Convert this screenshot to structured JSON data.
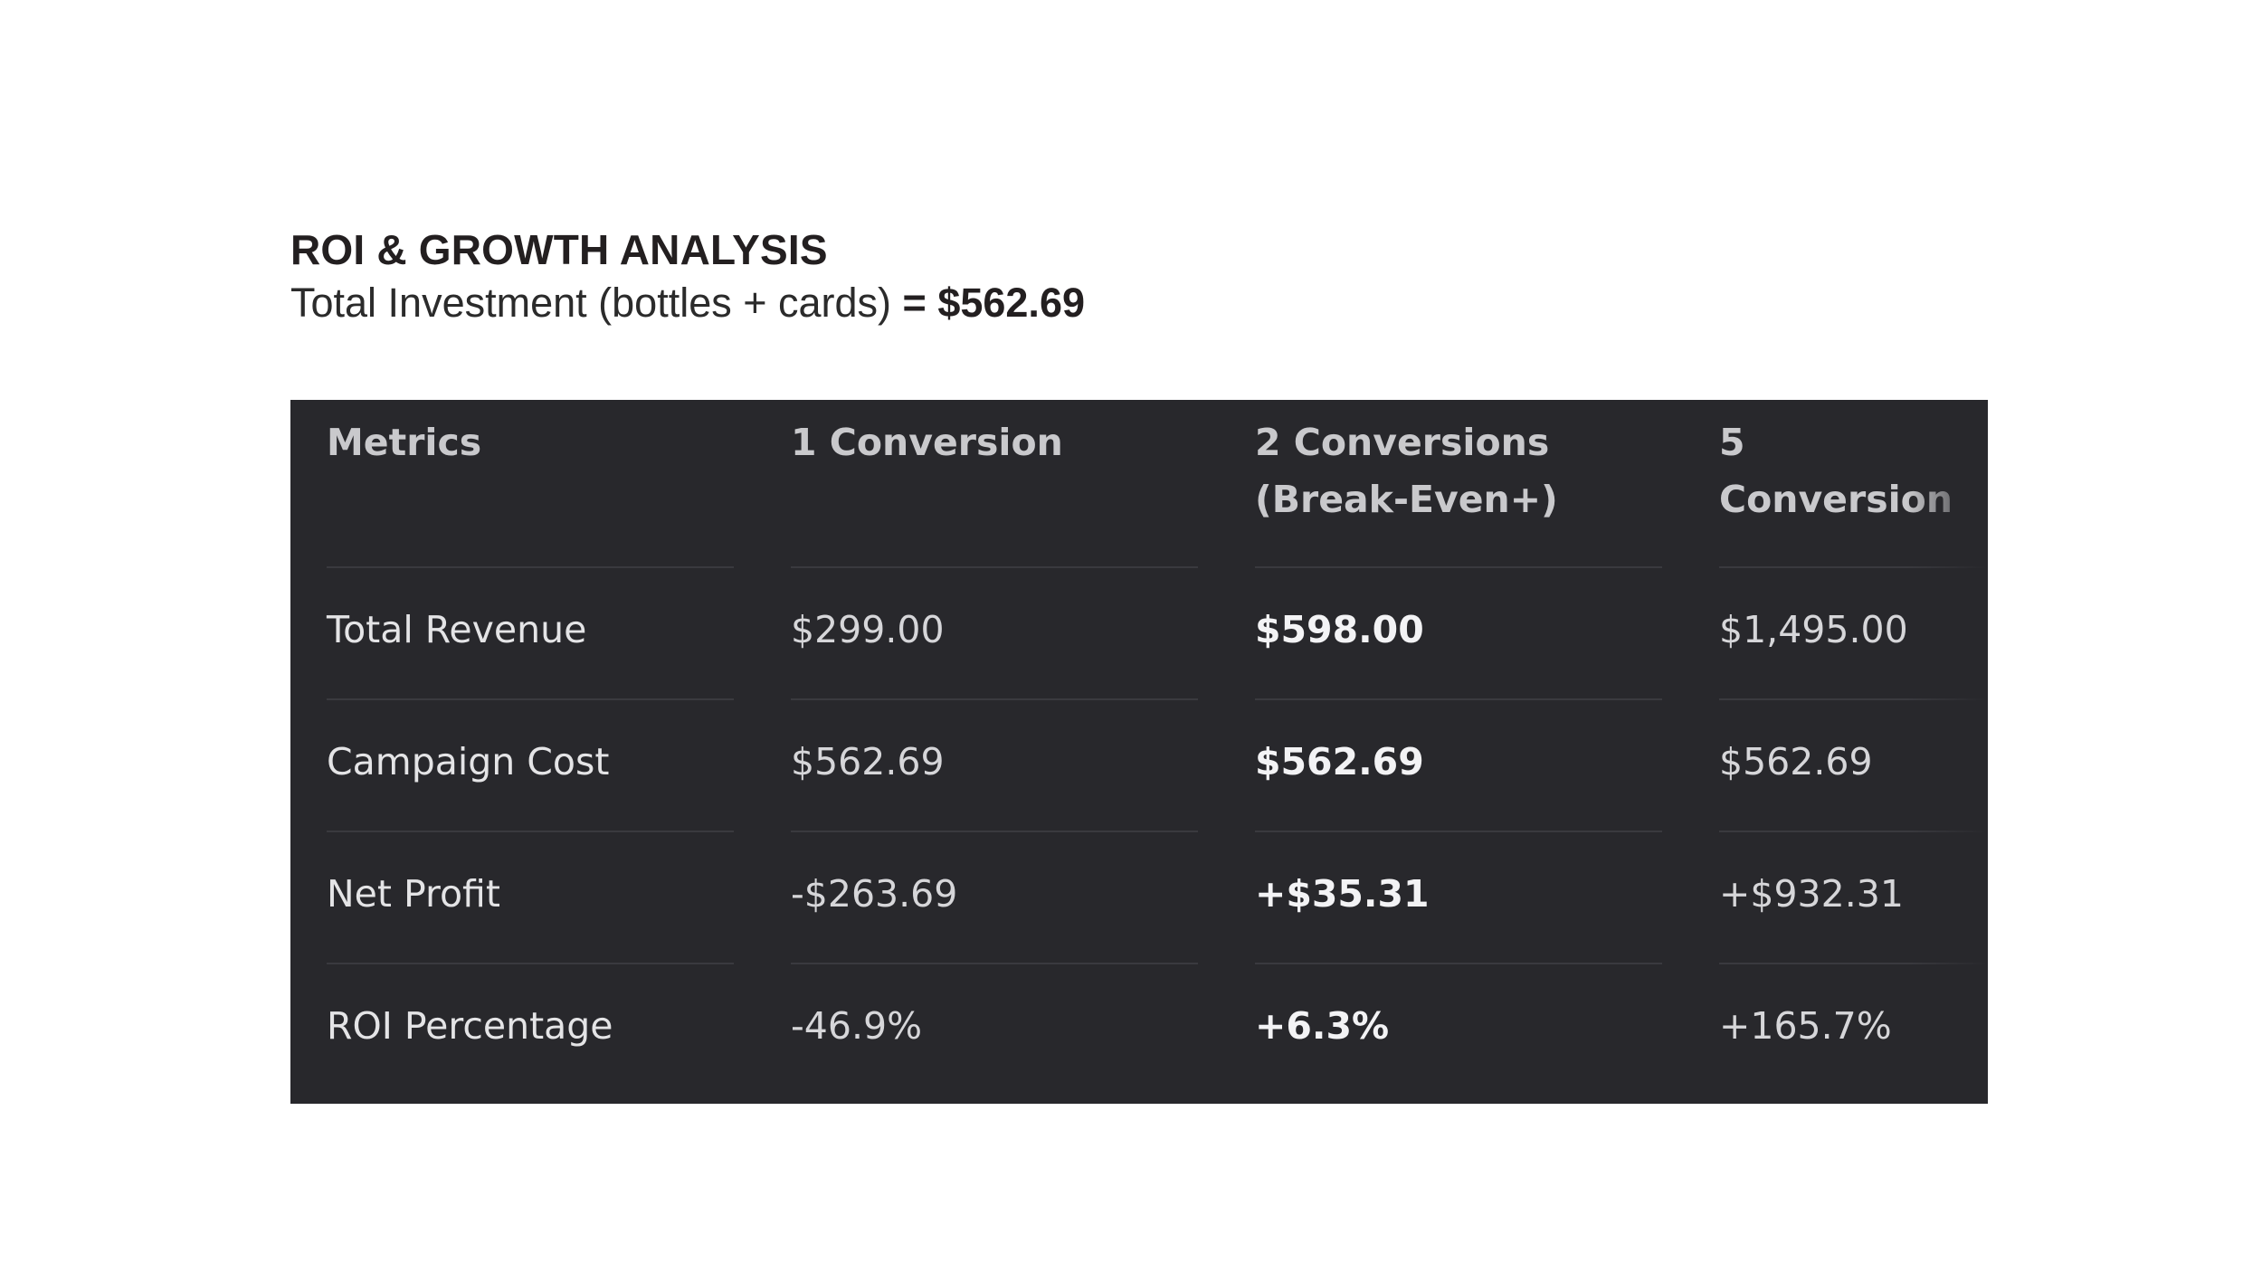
{
  "heading": {
    "title": "ROI & GROWTH ANALYSIS",
    "subtitle_prefix": "Total Investment (bottles + cards) ",
    "subtitle_value": "= $562.69"
  },
  "table": {
    "headers": [
      "Metrics",
      "1 Conversion",
      "2 Conversions (Break-Even+)",
      "5 Conversion"
    ],
    "rows": [
      {
        "label": "Total Revenue",
        "values": [
          "$299.00",
          "$598.00",
          "$1,495.00"
        ]
      },
      {
        "label": "Campaign Cost",
        "values": [
          "$562.69",
          "$562.69",
          "$562.69"
        ]
      },
      {
        "label": "Net Profit",
        "values": [
          "-$263.69",
          "+$35.31",
          "+$932.31"
        ]
      },
      {
        "label": "ROI Percentage",
        "values": [
          "-46.9%",
          "+6.3%",
          "+165.7%"
        ]
      }
    ]
  },
  "colors": {
    "table_background": "#28282c",
    "divider": "#3a3a3f",
    "heading_text": "#231f20"
  }
}
